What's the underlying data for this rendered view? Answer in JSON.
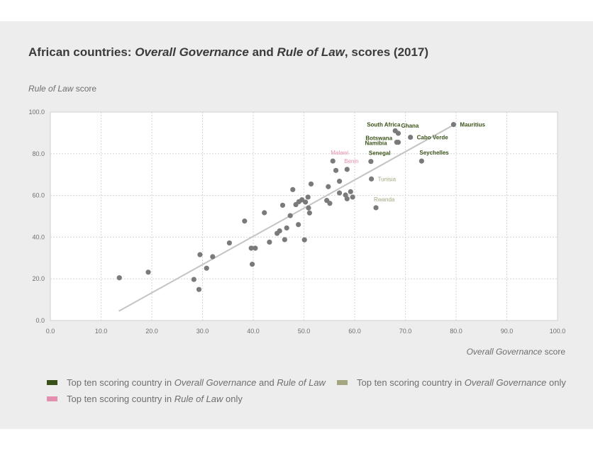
{
  "page": {
    "title_parts": [
      "African countries: ",
      "Overall Governance",
      " and ",
      "Rule of Law",
      ", scores (2017)"
    ]
  },
  "colors": {
    "both": "#3a5218",
    "og_only": "#a3a67f",
    "rol_only": "#e58fb0",
    "point": "#7a7a7a",
    "trend": "#c4c4c4",
    "grid": "#d6d6d6",
    "axis_text": "#6e6e6e"
  },
  "chart_data": {
    "type": "scatter",
    "title": "African countries: Overall Governance and Rule of Law, scores (2017)",
    "ylabel_parts": [
      "Rule of Law",
      " score"
    ],
    "xlabel_parts": [
      "Overall Governance",
      " score"
    ],
    "xlim": [
      0,
      100
    ],
    "ylim": [
      0,
      100
    ],
    "xticks": [
      "0.0",
      "10.0",
      "20.0",
      "30.0",
      "40.0",
      "50.0",
      "60.0",
      "70.0",
      "80.0",
      "90.0",
      "100.0"
    ],
    "yticks": [
      "0.0",
      "20.0",
      "40.0",
      "60.0",
      "80.0",
      "100.0"
    ],
    "grid": true,
    "trendline": {
      "x": [
        13.5,
        80.0
      ],
      "y": [
        4.5,
        94.5
      ]
    },
    "labeled_points": [
      {
        "name": "Mauritius",
        "x": 79.5,
        "y": 94.0,
        "group": "both"
      },
      {
        "name": "South Africa",
        "x": 68.0,
        "y": 91.0,
        "group": "both"
      },
      {
        "name": "Ghana",
        "x": 68.6,
        "y": 89.8,
        "group": "both"
      },
      {
        "name": "Botswana",
        "x": 68.3,
        "y": 85.5,
        "group": "both"
      },
      {
        "name": "Namibia",
        "x": 68.6,
        "y": 85.5,
        "group": "both"
      },
      {
        "name": "Cabo Verde",
        "x": 71.0,
        "y": 87.9,
        "group": "both"
      },
      {
        "name": "Senegal",
        "x": 63.2,
        "y": 76.3,
        "group": "both"
      },
      {
        "name": "Seychelles",
        "x": 73.2,
        "y": 76.5,
        "group": "both"
      },
      {
        "name": "Malawi",
        "x": 55.7,
        "y": 76.5,
        "group": "rol_only"
      },
      {
        "name": "Benin",
        "x": 58.5,
        "y": 72.5,
        "group": "rol_only"
      },
      {
        "name": "Tunisia",
        "x": 63.3,
        "y": 67.9,
        "group": "og_only"
      },
      {
        "name": "Rwanda",
        "x": 64.2,
        "y": 54.1,
        "group": "og_only"
      }
    ],
    "other_points": [
      {
        "x": 13.6,
        "y": 20.5
      },
      {
        "x": 19.3,
        "y": 23.2
      },
      {
        "x": 28.3,
        "y": 19.7
      },
      {
        "x": 29.3,
        "y": 14.9
      },
      {
        "x": 29.5,
        "y": 31.6
      },
      {
        "x": 30.8,
        "y": 25.1
      },
      {
        "x": 32.0,
        "y": 30.6
      },
      {
        "x": 35.3,
        "y": 37.2
      },
      {
        "x": 38.3,
        "y": 47.7
      },
      {
        "x": 39.6,
        "y": 34.7
      },
      {
        "x": 39.8,
        "y": 27.0
      },
      {
        "x": 40.4,
        "y": 34.7
      },
      {
        "x": 42.2,
        "y": 51.7
      },
      {
        "x": 43.2,
        "y": 37.6
      },
      {
        "x": 44.7,
        "y": 41.8
      },
      {
        "x": 45.2,
        "y": 43.0
      },
      {
        "x": 45.8,
        "y": 55.3
      },
      {
        "x": 46.2,
        "y": 38.8
      },
      {
        "x": 46.6,
        "y": 44.4
      },
      {
        "x": 47.3,
        "y": 50.3
      },
      {
        "x": 47.8,
        "y": 62.8
      },
      {
        "x": 48.4,
        "y": 55.6
      },
      {
        "x": 48.9,
        "y": 46.0
      },
      {
        "x": 49.0,
        "y": 57.0
      },
      {
        "x": 49.6,
        "y": 57.9
      },
      {
        "x": 50.1,
        "y": 38.7
      },
      {
        "x": 50.3,
        "y": 56.8
      },
      {
        "x": 50.8,
        "y": 59.2
      },
      {
        "x": 50.9,
        "y": 54.0
      },
      {
        "x": 51.1,
        "y": 51.6
      },
      {
        "x": 51.4,
        "y": 65.5
      },
      {
        "x": 54.5,
        "y": 57.6
      },
      {
        "x": 54.8,
        "y": 64.2
      },
      {
        "x": 55.1,
        "y": 56.2
      },
      {
        "x": 56.3,
        "y": 72.0
      },
      {
        "x": 57.0,
        "y": 61.2
      },
      {
        "x": 57.0,
        "y": 66.8
      },
      {
        "x": 58.2,
        "y": 60.2
      },
      {
        "x": 58.5,
        "y": 58.4
      },
      {
        "x": 59.2,
        "y": 61.8
      },
      {
        "x": 59.6,
        "y": 59.2
      }
    ],
    "legend": [
      {
        "key": "both",
        "parts": [
          "Top ten scoring country in ",
          "Overall Governance",
          " and ",
          "Rule of Law",
          ""
        ]
      },
      {
        "key": "og_only",
        "parts": [
          "Top ten scoring country in ",
          "Overall Governance",
          " only"
        ]
      },
      {
        "key": "rol_only",
        "parts": [
          "Top ten scoring country in ",
          "Rule of Law",
          " only"
        ]
      }
    ]
  }
}
